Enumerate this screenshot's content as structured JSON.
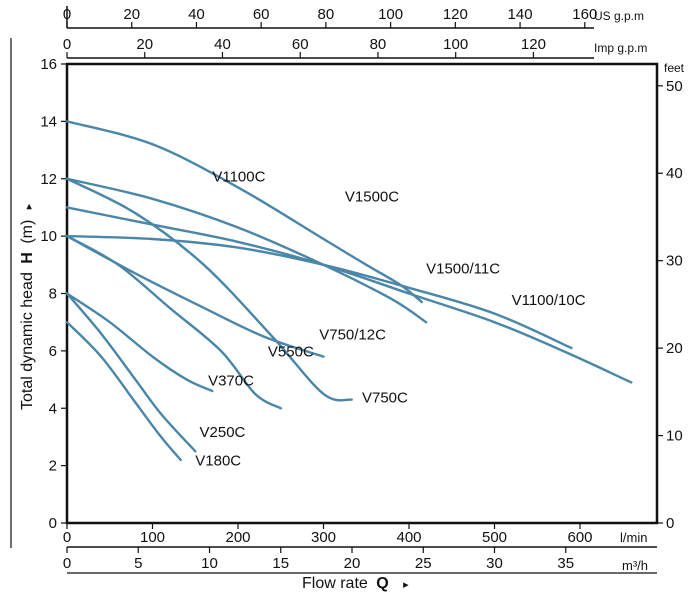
{
  "chart_data": {
    "type": "line",
    "xlabel": "Flow rate",
    "xlabel_symbol": "Q",
    "ylabel": "Total dynamic head",
    "ylabel_symbol": "H",
    "ylabel_unit": "(m)",
    "x_unit": "l/min",
    "x_unit_m3h": "m³/h",
    "y_unit_feet": "feet",
    "top_unit_us": "US g.p.m",
    "top_unit_imp": "Imp g.p.m",
    "xlim": [
      0,
      660
    ],
    "ylim": [
      0,
      16
    ],
    "x_ticks": [
      "0",
      "100",
      "200",
      "300",
      "400",
      "500",
      "600"
    ],
    "m3h_ticks": [
      "0",
      "5",
      "10",
      "15",
      "20",
      "25",
      "30",
      "35"
    ],
    "y_ticks": [
      "0",
      "2",
      "4",
      "6",
      "8",
      "10",
      "12",
      "14",
      "16"
    ],
    "feet_ticks": [
      "0",
      "10",
      "20",
      "30",
      "40",
      "50"
    ],
    "us_gpm_ticks": [
      "0",
      "20",
      "40",
      "60",
      "80",
      "100",
      "120",
      "140",
      "160"
    ],
    "imp_gpm_ticks": [
      "0",
      "20",
      "40",
      "60",
      "80",
      "100",
      "120"
    ],
    "grid": false,
    "line_color": "#4a86a8",
    "series": [
      {
        "name": "V180C",
        "points": [
          [
            0,
            7.0
          ],
          [
            40,
            5.8
          ],
          [
            80,
            4.2
          ],
          [
            110,
            3.0
          ],
          [
            133,
            2.2
          ]
        ]
      },
      {
        "name": "V250C",
        "points": [
          [
            0,
            8.0
          ],
          [
            40,
            6.6
          ],
          [
            80,
            5.0
          ],
          [
            110,
            3.8
          ],
          [
            150,
            2.5
          ]
        ]
      },
      {
        "name": "V370C",
        "points": [
          [
            0,
            8.0
          ],
          [
            50,
            7.0
          ],
          [
            100,
            5.8
          ],
          [
            140,
            5.0
          ],
          [
            170,
            4.6
          ]
        ]
      },
      {
        "name": "V550C",
        "points": [
          [
            0,
            10.0
          ],
          [
            60,
            9.0
          ],
          [
            120,
            7.5
          ],
          [
            180,
            6.0
          ],
          [
            220,
            4.5
          ],
          [
            250,
            4.0
          ]
        ]
      },
      {
        "name": "V750C",
        "points": [
          [
            0,
            12.0
          ],
          [
            80,
            10.8
          ],
          [
            160,
            9.0
          ],
          [
            240,
            6.5
          ],
          [
            300,
            4.5
          ],
          [
            333,
            4.3
          ]
        ]
      },
      {
        "name": "V750/12C",
        "points": [
          [
            0,
            10.0
          ],
          [
            80,
            8.7
          ],
          [
            160,
            7.5
          ],
          [
            230,
            6.5
          ],
          [
            300,
            5.8
          ]
        ]
      },
      {
        "name": "V1100C",
        "points": [
          [
            0,
            12.0
          ],
          [
            100,
            11.3
          ],
          [
            200,
            10.3
          ],
          [
            300,
            9.0
          ],
          [
            380,
            7.8
          ],
          [
            420,
            7.0
          ]
        ]
      },
      {
        "name": "V1500C",
        "points": [
          [
            0,
            14.0
          ],
          [
            100,
            13.2
          ],
          [
            200,
            11.7
          ],
          [
            300,
            9.9
          ],
          [
            350,
            9.0
          ],
          [
            390,
            8.3
          ],
          [
            415,
            7.7
          ]
        ]
      },
      {
        "name": "V1500/11C",
        "points": [
          [
            0,
            11.0
          ],
          [
            100,
            10.4
          ],
          [
            200,
            9.8
          ],
          [
            300,
            9.0
          ],
          [
            400,
            8.0
          ],
          [
            500,
            7.0
          ],
          [
            580,
            6.0
          ],
          [
            660,
            4.9
          ]
        ]
      },
      {
        "name": "V1100/10C",
        "points": [
          [
            0,
            10.0
          ],
          [
            100,
            9.9
          ],
          [
            200,
            9.6
          ],
          [
            300,
            9.0
          ],
          [
            400,
            8.2
          ],
          [
            500,
            7.3
          ],
          [
            590,
            6.1
          ]
        ]
      }
    ],
    "labels": [
      {
        "text": "V1100C",
        "x": 170,
        "y": 11.9
      },
      {
        "text": "V1500C",
        "x": 325,
        "y": 11.2
      },
      {
        "text": "V1500/11C",
        "x": 420,
        "y": 8.7
      },
      {
        "text": "V1100/10C",
        "x": 520,
        "y": 7.6
      },
      {
        "text": "V750/12C",
        "x": 295,
        "y": 6.4
      },
      {
        "text": "V550C",
        "x": 235,
        "y": 5.8
      },
      {
        "text": "V370C",
        "x": 165,
        "y": 4.8
      },
      {
        "text": "V750C",
        "x": 345,
        "y": 4.2
      },
      {
        "text": "V250C",
        "x": 155,
        "y": 3.0
      },
      {
        "text": "V180C",
        "x": 150,
        "y": 2.0
      }
    ]
  }
}
